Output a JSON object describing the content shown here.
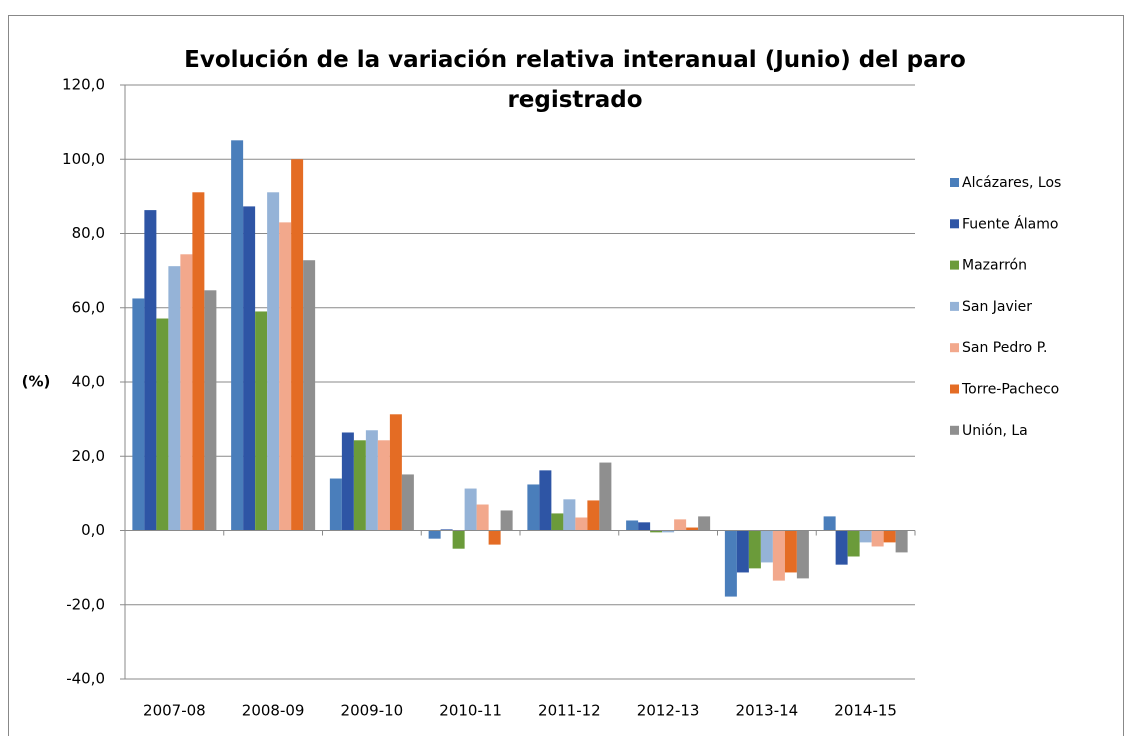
{
  "chart_data": {
    "type": "bar",
    "title": "Evolución de la variación relativa interanual (Junio) del paro registrado",
    "y_label": "(%)",
    "categories": [
      "2007-08",
      "2008-09",
      "2009-10",
      "2010-11",
      "2011-12",
      "2012-13",
      "2013-14",
      "2014-15"
    ],
    "series": [
      {
        "name": "Alcázares, Los",
        "color": "#4a7ebb",
        "values": [
          62.5,
          105.1,
          14.0,
          -2.2,
          12.4,
          2.7,
          -17.8,
          3.8
        ]
      },
      {
        "name": "Fuente Álamo",
        "color": "#2e55a5",
        "values": [
          86.3,
          87.3,
          26.4,
          0.3,
          16.2,
          2.2,
          -11.3,
          -9.2
        ]
      },
      {
        "name": "Mazarrón",
        "color": "#6b9b3a",
        "values": [
          57.1,
          59.0,
          24.3,
          -4.9,
          4.6,
          -0.5,
          -10.2,
          -7.0
        ]
      },
      {
        "name": "San Javier",
        "color": "#95b3d7",
        "values": [
          71.2,
          91.1,
          27.0,
          11.3,
          8.4,
          -0.5,
          -8.6,
          -3.2
        ]
      },
      {
        "name": "San Pedro P.",
        "color": "#f2a88c",
        "values": [
          74.4,
          83.0,
          24.3,
          7.0,
          3.5,
          3.0,
          -13.5,
          -4.3
        ]
      },
      {
        "name": "Torre-Pacheco",
        "color": "#e46c24",
        "values": [
          91.1,
          100.0,
          31.3,
          -3.8,
          8.1,
          0.8,
          -11.3,
          -3.2
        ]
      },
      {
        "name": "Unión, La",
        "color": "#8f8f8f",
        "values": [
          64.7,
          72.8,
          15.1,
          5.4,
          18.3,
          3.8,
          -12.9,
          -5.9
        ]
      }
    ],
    "ylim": [
      -40,
      120
    ],
    "yticks": [
      {
        "value": -40,
        "label": "-40,0"
      },
      {
        "value": -20,
        "label": "-20,0"
      },
      {
        "value": 0,
        "label": "0,0"
      },
      {
        "value": 20,
        "label": "20,0"
      },
      {
        "value": 40,
        "label": "40,0"
      },
      {
        "value": 60,
        "label": "60,0"
      },
      {
        "value": 80,
        "label": "80,0"
      },
      {
        "value": 100,
        "label": "100,0"
      },
      {
        "value": 120,
        "label": "120,0"
      }
    ],
    "grid": true,
    "legend": "right"
  }
}
